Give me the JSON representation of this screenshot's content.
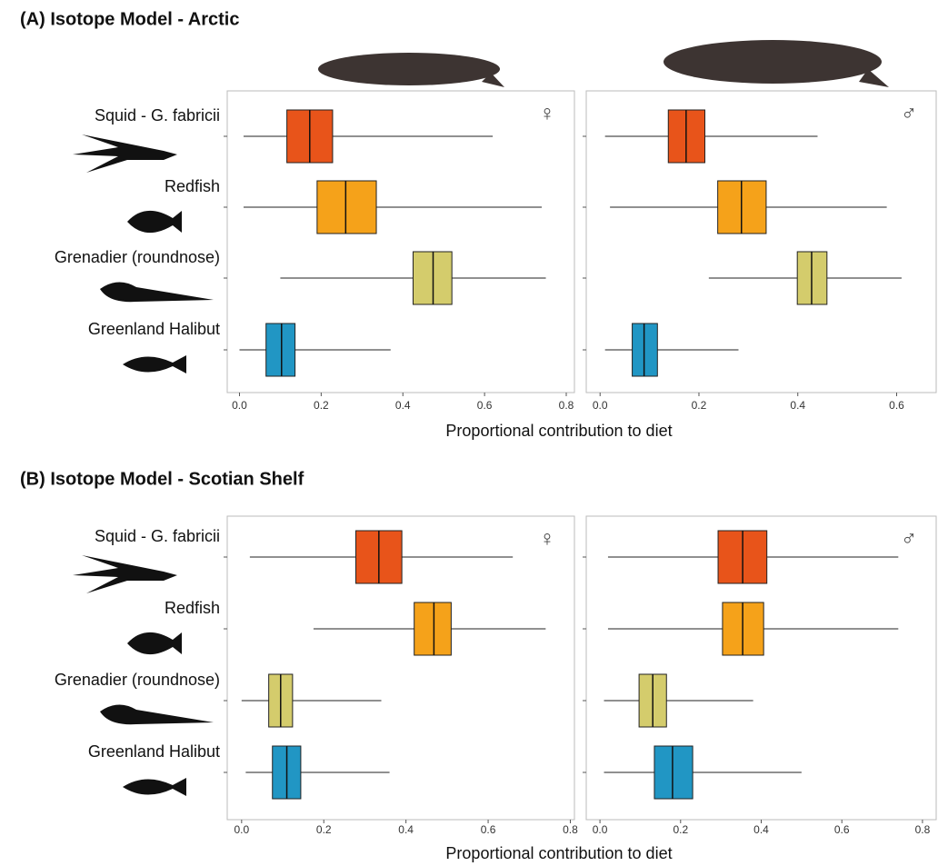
{
  "chart_data": [
    {
      "type": "box",
      "title": "(A) Isotope Model - Arctic",
      "xlabel": "Proportional contribution to diet",
      "annotation": "♀",
      "categories": [
        "Squid - G. fabricii",
        "Redfish",
        "Grenadier (roundnose)",
        "Greenland Halibut"
      ],
      "boxes": [
        {
          "whislo": 0.01,
          "q1": 0.116,
          "med": 0.172,
          "q3": 0.228,
          "whishi": 0.62,
          "color": "#e8541a"
        },
        {
          "whislo": 0.01,
          "q1": 0.19,
          "med": 0.26,
          "q3": 0.335,
          "whishi": 0.74,
          "color": "#f5a21a"
        },
        {
          "whislo": 0.1,
          "q1": 0.425,
          "med": 0.474,
          "q3": 0.52,
          "whishi": 0.75,
          "color": "#d4cc6c"
        },
        {
          "whislo": 0.0,
          "q1": 0.065,
          "med": 0.103,
          "q3": 0.136,
          "whishi": 0.37,
          "color": "#2196c4"
        }
      ],
      "xlim": [
        -0.03,
        0.82
      ],
      "xticks": [
        {
          "value": 0,
          "label": "0.0"
        },
        0.2,
        0.4,
        0.6,
        0.8
      ]
    },
    {
      "type": "box",
      "annotation": "♂",
      "boxes": [
        {
          "whislo": 0.01,
          "q1": 0.138,
          "med": 0.174,
          "q3": 0.212,
          "whishi": 0.44,
          "color": "#e8541a"
        },
        {
          "whislo": 0.02,
          "q1": 0.238,
          "med": 0.286,
          "q3": 0.336,
          "whishi": 0.58,
          "color": "#f5a21a"
        },
        {
          "whislo": 0.22,
          "q1": 0.399,
          "med": 0.428,
          "q3": 0.459,
          "whishi": 0.61,
          "color": "#d4cc6c"
        },
        {
          "whislo": 0.01,
          "q1": 0.065,
          "med": 0.089,
          "q3": 0.116,
          "whishi": 0.28,
          "color": "#2196c4"
        }
      ],
      "xlim": [
        -0.028,
        0.68
      ],
      "xticks": [
        {
          "value": 0,
          "label": "0.0"
        },
        0.2,
        0.4,
        0.6
      ]
    },
    {
      "type": "box",
      "title": "(B) Isotope Model - Scotian Shelf",
      "xlabel": "Proportional contribution to diet",
      "annotation": "♀",
      "categories": [
        "Squid - G. fabricii",
        "Redfish",
        "Grenadier (roundnose)",
        "Greenland Halibut"
      ],
      "boxes": [
        {
          "whislo": 0.02,
          "q1": 0.278,
          "med": 0.334,
          "q3": 0.39,
          "whishi": 0.66,
          "color": "#e8541a"
        },
        {
          "whislo": 0.175,
          "q1": 0.42,
          "med": 0.468,
          "q3": 0.51,
          "whishi": 0.74,
          "color": "#f5a21a"
        },
        {
          "whislo": 0.0,
          "q1": 0.066,
          "med": 0.095,
          "q3": 0.124,
          "whishi": 0.34,
          "color": "#d4cc6c"
        },
        {
          "whislo": 0.01,
          "q1": 0.075,
          "med": 0.11,
          "q3": 0.144,
          "whishi": 0.36,
          "color": "#2196c4"
        }
      ],
      "xlim": [
        -0.035,
        0.81
      ],
      "xticks": [
        {
          "value": 0,
          "label": "0.0"
        },
        0.2,
        0.4,
        0.6,
        0.8
      ]
    },
    {
      "type": "box",
      "annotation": "♂",
      "boxes": [
        {
          "whislo": 0.02,
          "q1": 0.293,
          "med": 0.354,
          "q3": 0.414,
          "whishi": 0.74,
          "color": "#e8541a"
        },
        {
          "whislo": 0.02,
          "q1": 0.304,
          "med": 0.354,
          "q3": 0.406,
          "whishi": 0.74,
          "color": "#f5a21a"
        },
        {
          "whislo": 0.01,
          "q1": 0.097,
          "med": 0.131,
          "q3": 0.165,
          "whishi": 0.38,
          "color": "#d4cc6c"
        },
        {
          "whislo": 0.01,
          "q1": 0.135,
          "med": 0.18,
          "q3": 0.23,
          "whishi": 0.5,
          "color": "#2196c4"
        }
      ],
      "xlim": [
        -0.034,
        0.834
      ],
      "xticks": [
        {
          "value": 0,
          "label": "0.0"
        },
        0.2,
        0.4,
        0.6,
        0.8
      ]
    }
  ]
}
